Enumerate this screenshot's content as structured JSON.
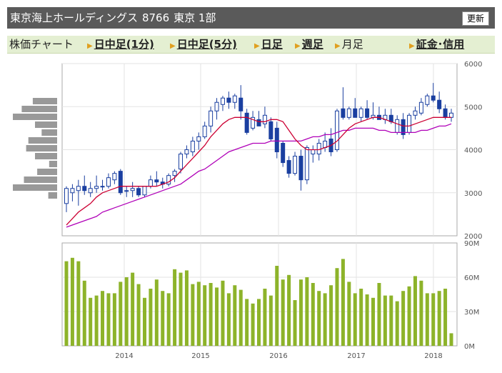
{
  "header": {
    "company": "東京海上ホールディングス",
    "code": "8766",
    "market": "東京 1部",
    "refresh_label": "更新"
  },
  "tabs": {
    "chart_label": "株価チャート",
    "intraday1": "日中足(1分)",
    "intraday5": "日中足(5分)",
    "daily": "日足",
    "weekly": "週足",
    "monthly": "月足",
    "margin": "証金･信用"
  },
  "colors": {
    "up_candle": "#ffffff",
    "down_candle": "#1a3fa0",
    "ma_short": "#cc0033",
    "ma_long": "#b000b8",
    "volume_bar": "#8db32a",
    "volume_profile": "#999999"
  },
  "chart_data": [
    {
      "type": "candlestick",
      "title": "",
      "x_ticks": [
        "2014",
        "2015",
        "2016",
        "2017",
        "2018"
      ],
      "y_ticks": [
        "6000",
        "5000",
        "4000",
        "3000",
        "2000"
      ],
      "ylim": [
        2000,
        6000
      ],
      "grid": true,
      "candles": [
        {
          "o": 2750,
          "h": 3150,
          "l": 2550,
          "c": 3100
        },
        {
          "o": 3000,
          "h": 3200,
          "l": 2800,
          "c": 3100
        },
        {
          "o": 3050,
          "h": 3300,
          "l": 2700,
          "c": 3150
        },
        {
          "o": 3150,
          "h": 3400,
          "l": 2950,
          "c": 3050
        },
        {
          "o": 3000,
          "h": 3250,
          "l": 2900,
          "c": 3100
        },
        {
          "o": 3100,
          "h": 3400,
          "l": 3000,
          "c": 3150
        },
        {
          "o": 3150,
          "h": 3300,
          "l": 3050,
          "c": 3150
        },
        {
          "o": 3150,
          "h": 3450,
          "l": 3100,
          "c": 3350
        },
        {
          "o": 3300,
          "h": 3500,
          "l": 3200,
          "c": 3450
        },
        {
          "o": 3500,
          "h": 3550,
          "l": 2950,
          "c": 3000
        },
        {
          "o": 3050,
          "h": 3150,
          "l": 2900,
          "c": 3050
        },
        {
          "o": 3050,
          "h": 3250,
          "l": 2900,
          "c": 3100
        },
        {
          "o": 3100,
          "h": 3150,
          "l": 2900,
          "c": 2950
        },
        {
          "o": 2950,
          "h": 3150,
          "l": 2900,
          "c": 3150
        },
        {
          "o": 3150,
          "h": 3400,
          "l": 3100,
          "c": 3300
        },
        {
          "o": 3300,
          "h": 3500,
          "l": 3150,
          "c": 3250
        },
        {
          "o": 3250,
          "h": 3350,
          "l": 3100,
          "c": 3200
        },
        {
          "o": 3200,
          "h": 3450,
          "l": 3150,
          "c": 3400
        },
        {
          "o": 3400,
          "h": 3550,
          "l": 3250,
          "c": 3500
        },
        {
          "o": 3550,
          "h": 3950,
          "l": 3450,
          "c": 3900
        },
        {
          "o": 3900,
          "h": 4100,
          "l": 3800,
          "c": 4000
        },
        {
          "o": 3950,
          "h": 4300,
          "l": 3850,
          "c": 4200
        },
        {
          "o": 4200,
          "h": 4400,
          "l": 4000,
          "c": 4300
        },
        {
          "o": 4300,
          "h": 4650,
          "l": 4250,
          "c": 4550
        },
        {
          "o": 4550,
          "h": 5000,
          "l": 4400,
          "c": 4900
        },
        {
          "o": 4900,
          "h": 5200,
          "l": 4700,
          "c": 5100
        },
        {
          "o": 5050,
          "h": 5250,
          "l": 4900,
          "c": 5200
        },
        {
          "o": 5200,
          "h": 5350,
          "l": 4950,
          "c": 5100
        },
        {
          "o": 5100,
          "h": 5300,
          "l": 4950,
          "c": 5250
        },
        {
          "o": 5200,
          "h": 5500,
          "l": 4700,
          "c": 4900
        },
        {
          "o": 4850,
          "h": 4950,
          "l": 4350,
          "c": 4400
        },
        {
          "o": 4500,
          "h": 4900,
          "l": 4450,
          "c": 4750
        },
        {
          "o": 4700,
          "h": 4900,
          "l": 4550,
          "c": 4550
        },
        {
          "o": 4600,
          "h": 5000,
          "l": 4500,
          "c": 4800
        },
        {
          "o": 4650,
          "h": 4750,
          "l": 4200,
          "c": 4250
        },
        {
          "o": 4500,
          "h": 4650,
          "l": 3800,
          "c": 3950
        },
        {
          "o": 4150,
          "h": 4200,
          "l": 3600,
          "c": 3700
        },
        {
          "o": 3750,
          "h": 3850,
          "l": 3350,
          "c": 3450
        },
        {
          "o": 3450,
          "h": 3950,
          "l": 3400,
          "c": 3850
        },
        {
          "o": 3850,
          "h": 4000,
          "l": 3050,
          "c": 3300
        },
        {
          "o": 3300,
          "h": 4100,
          "l": 3200,
          "c": 4050
        },
        {
          "o": 3900,
          "h": 4100,
          "l": 3700,
          "c": 4000
        },
        {
          "o": 3900,
          "h": 4250,
          "l": 3750,
          "c": 4150
        },
        {
          "o": 4050,
          "h": 4400,
          "l": 3950,
          "c": 4200
        },
        {
          "o": 4250,
          "h": 4500,
          "l": 3850,
          "c": 3950
        },
        {
          "o": 4000,
          "h": 4950,
          "l": 3950,
          "c": 4900
        },
        {
          "o": 4950,
          "h": 5450,
          "l": 4700,
          "c": 4750
        },
        {
          "o": 4750,
          "h": 5000,
          "l": 4700,
          "c": 4950
        },
        {
          "o": 4950,
          "h": 5200,
          "l": 4750,
          "c": 4750
        },
        {
          "o": 4750,
          "h": 5000,
          "l": 4650,
          "c": 4950
        },
        {
          "o": 4950,
          "h": 5150,
          "l": 4700,
          "c": 4750
        },
        {
          "o": 4750,
          "h": 5100,
          "l": 4700,
          "c": 4800
        },
        {
          "o": 4800,
          "h": 5000,
          "l": 4700,
          "c": 4700
        },
        {
          "o": 4700,
          "h": 4950,
          "l": 4600,
          "c": 4800
        },
        {
          "o": 4800,
          "h": 4950,
          "l": 4600,
          "c": 4650
        },
        {
          "o": 4400,
          "h": 4800,
          "l": 4350,
          "c": 4700
        },
        {
          "o": 4700,
          "h": 4850,
          "l": 4250,
          "c": 4350
        },
        {
          "o": 4400,
          "h": 4850,
          "l": 4350,
          "c": 4800
        },
        {
          "o": 4800,
          "h": 5000,
          "l": 4700,
          "c": 4900
        },
        {
          "o": 4850,
          "h": 5200,
          "l": 4800,
          "c": 5100
        },
        {
          "o": 5050,
          "h": 5300,
          "l": 5000,
          "c": 5250
        },
        {
          "o": 5250,
          "h": 5550,
          "l": 5100,
          "c": 5150
        },
        {
          "o": 5150,
          "h": 5350,
          "l": 4850,
          "c": 4950
        },
        {
          "o": 4950,
          "h": 5050,
          "l": 4700,
          "c": 4750
        },
        {
          "o": 4750,
          "h": 4950,
          "l": 4650,
          "c": 4850
        }
      ],
      "ma_short": [
        2250,
        2400,
        2550,
        2650,
        2750,
        2900,
        3000,
        3050,
        3100,
        3150,
        3150,
        3150,
        3150,
        3150,
        3150,
        3150,
        3200,
        3250,
        3350,
        3500,
        3650,
        3800,
        3950,
        4100,
        4300,
        4450,
        4600,
        4700,
        4750,
        4750,
        4750,
        4700,
        4650,
        4650,
        4700,
        4700,
        4650,
        4450,
        4250,
        4100,
        4000,
        4000,
        4000,
        4050,
        4100,
        4200,
        4350,
        4500,
        4600,
        4650,
        4700,
        4750,
        4750,
        4700,
        4650,
        4600,
        4550,
        4550,
        4600,
        4650,
        4700,
        4750,
        4750,
        4750,
        4750
      ],
      "ma_long": [
        2200,
        2250,
        2300,
        2350,
        2400,
        2450,
        2550,
        2600,
        2650,
        2700,
        2750,
        2800,
        2850,
        2900,
        2950,
        3000,
        3050,
        3100,
        3150,
        3200,
        3300,
        3400,
        3500,
        3550,
        3650,
        3750,
        3850,
        3950,
        4000,
        4050,
        4100,
        4150,
        4150,
        4150,
        4200,
        4200,
        4200,
        4200,
        4200,
        4200,
        4250,
        4300,
        4300,
        4350,
        4350,
        4400,
        4450,
        4450,
        4500,
        4500,
        4500,
        4500,
        4450,
        4450,
        4400,
        4400,
        4400,
        4400,
        4400,
        4450,
        4450,
        4500,
        4550,
        4550,
        4600
      ],
      "volume_profile": [
        0.55,
        0.8,
        1.0,
        0.5,
        0.35,
        0.65,
        0.7,
        0.5,
        0.18,
        0.45,
        0.75,
        1.0,
        0.2
      ]
    },
    {
      "type": "bar",
      "title": "",
      "series_name": "",
      "x_ticks": [
        "2014",
        "2015",
        "2016",
        "2017",
        "2018"
      ],
      "y_ticks": [
        "90M",
        "60M",
        "30M",
        "0M"
      ],
      "ylim": [
        0,
        90
      ],
      "unit": "M",
      "grid": true,
      "values": [
        74,
        77,
        74,
        57,
        42,
        44,
        48,
        46,
        46,
        56,
        60,
        64,
        54,
        42,
        50,
        58,
        48,
        46,
        67,
        64,
        66,
        54,
        56,
        53,
        55,
        51,
        57,
        46,
        53,
        49,
        41,
        37,
        41,
        50,
        44,
        70,
        58,
        62,
        40,
        58,
        60,
        55,
        48,
        46,
        53,
        68,
        76,
        56,
        46,
        50,
        45,
        42,
        55,
        44,
        44,
        39,
        48,
        52,
        61,
        57,
        46,
        46,
        48,
        50,
        11
      ]
    }
  ]
}
